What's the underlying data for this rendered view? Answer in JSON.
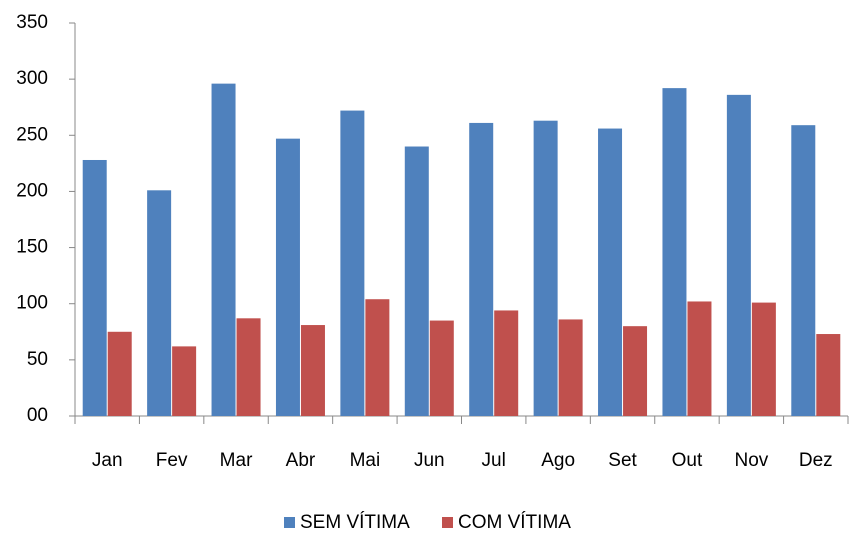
{
  "chart_data": {
    "type": "bar",
    "categories": [
      "Jan",
      "Fev",
      "Mar",
      "Abr",
      "Mai",
      "Jun",
      "Jul",
      "Ago",
      "Set",
      "Out",
      "Nov",
      "Dez"
    ],
    "series": [
      {
        "name": "SEM VÍTIMA",
        "color": "#4f81bd",
        "values": [
          228,
          201,
          296,
          247,
          272,
          240,
          261,
          263,
          256,
          292,
          286,
          259
        ]
      },
      {
        "name": "COM VÍTIMA",
        "color": "#c0504d",
        "values": [
          75,
          62,
          87,
          81,
          104,
          85,
          94,
          86,
          80,
          102,
          101,
          73
        ]
      }
    ],
    "ylim": [
      0,
      350
    ],
    "yticks": [
      {
        "value": 0,
        "label": "00"
      },
      50,
      100,
      150,
      200,
      250,
      300,
      350
    ],
    "grid": false,
    "legend": "bottom"
  }
}
